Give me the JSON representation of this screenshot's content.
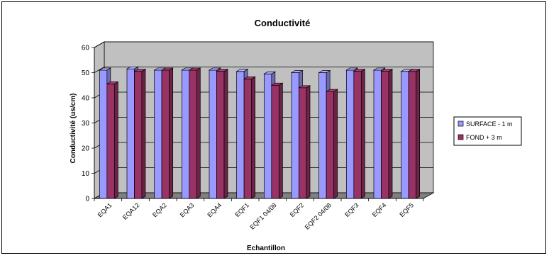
{
  "chart_data": {
    "type": "bar",
    "title": "Conductivité",
    "xlabel": "Echantillon",
    "ylabel": "Conductivité (us/cm)",
    "ylim": [
      0,
      60
    ],
    "yticks": [
      "0",
      "10",
      "20",
      "30",
      "40",
      "50",
      "60"
    ],
    "grid": true,
    "legend_position": "right",
    "categories": [
      "EQA1",
      "EQA12",
      "EQA2",
      "EQA3",
      "EQA4",
      "EQF1",
      "EQF1 04/08",
      "EQF2",
      "EQF2 04/08",
      "EQF3",
      "EQF4",
      "EQF5"
    ],
    "series": [
      {
        "name": "SURFACE - 1 m",
        "color": "#9999FF",
        "values": [
          51,
          51.5,
          51,
          51,
          51,
          50.5,
          49.5,
          50,
          50,
          51,
          51,
          50.5
        ]
      },
      {
        "name": "FOND + 3 m",
        "color": "#993366",
        "values": [
          45.5,
          50.5,
          51,
          51,
          50.5,
          47.5,
          45,
          44,
          42.5,
          50.5,
          50.5,
          50.5
        ]
      }
    ],
    "colors": {
      "plot_back_wall": "#C0C0C0",
      "floor": "#808080"
    }
  }
}
